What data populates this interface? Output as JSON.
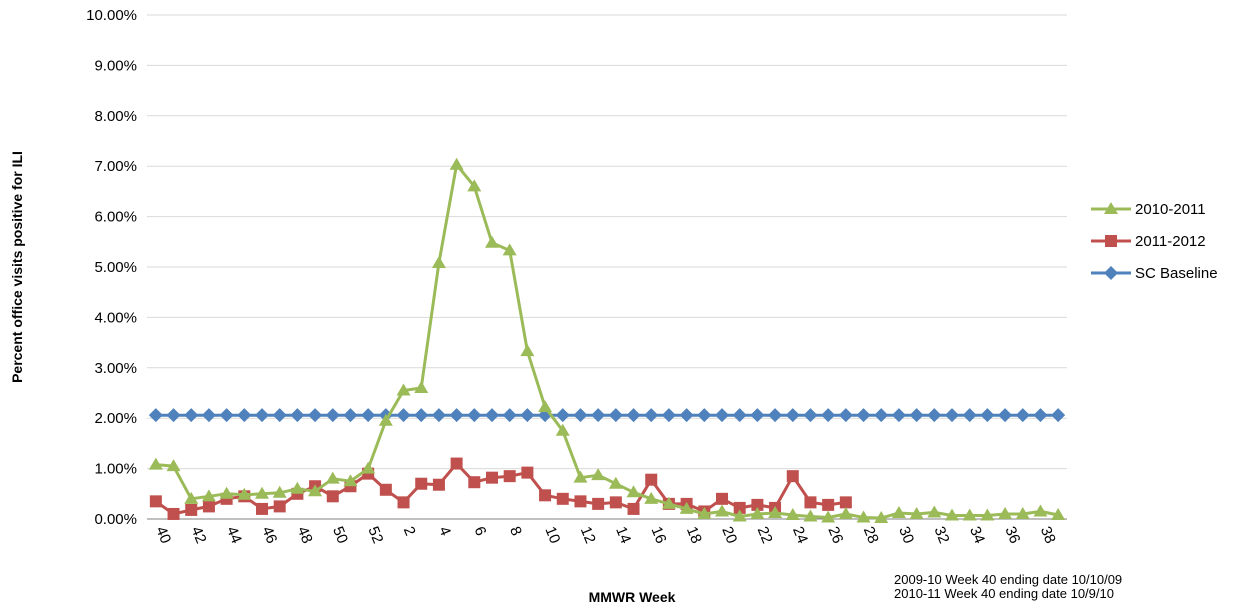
{
  "chart_data": {
    "type": "line",
    "xlabel": "MMWR Week",
    "ylabel": "Percent office visits positive for ILI",
    "ylim": [
      0,
      0.1
    ],
    "yticks": [
      "0.00%",
      "1.00%",
      "2.00%",
      "3.00%",
      "4.00%",
      "5.00%",
      "6.00%",
      "7.00%",
      "8.00%",
      "9.00%",
      "10.00%"
    ],
    "grid": "horizontal",
    "legend_position": "right",
    "categories": [
      "40",
      "41",
      "42",
      "43",
      "44",
      "45",
      "46",
      "47",
      "48",
      "49",
      "50",
      "51",
      "52",
      "1",
      "2",
      "3",
      "4",
      "5",
      "6",
      "7",
      "8",
      "9",
      "10",
      "11",
      "12",
      "13",
      "14",
      "15",
      "16",
      "17",
      "18",
      "19",
      "20",
      "21",
      "22",
      "23",
      "24",
      "25",
      "26",
      "27",
      "28",
      "29",
      "30",
      "31",
      "32",
      "33",
      "34",
      "35",
      "36",
      "37",
      "38",
      "39"
    ],
    "tick_labels": [
      "40",
      "42",
      "44",
      "46",
      "48",
      "50",
      "52",
      "2",
      "4",
      "6",
      "8",
      "10",
      "12",
      "14",
      "16",
      "18",
      "20",
      "22",
      "24",
      "26",
      "28",
      "30",
      "32",
      "34",
      "36",
      "38"
    ],
    "series": [
      {
        "name": "2010-2011",
        "color": "#9bbb59",
        "marker": "triangle",
        "values": [
          0.0108,
          0.0105,
          0.004,
          0.0045,
          0.005,
          0.0048,
          0.005,
          0.0052,
          0.006,
          0.0055,
          0.008,
          0.0075,
          0.01,
          0.0195,
          0.0255,
          0.026,
          0.0508,
          0.0703,
          0.066,
          0.0548,
          0.0533,
          0.0333,
          0.0222,
          0.0175,
          0.0082,
          0.0087,
          0.007,
          0.0053,
          0.004,
          0.003,
          0.002,
          0.001,
          0.0015,
          0.0005,
          0.001,
          0.0012,
          0.0008,
          0.0005,
          0.0003,
          0.001,
          0.0003,
          0.0002,
          0.0012,
          0.001,
          0.0013,
          0.0007,
          0.0007,
          0.0007,
          0.001,
          0.001,
          0.0015,
          0.0008
        ]
      },
      {
        "name": "2011-2012",
        "color": "#c0504d",
        "marker": "square",
        "values": [
          0.0035,
          0.001,
          0.0018,
          0.0025,
          0.004,
          0.0045,
          0.002,
          0.0025,
          0.005,
          0.0065,
          0.0045,
          0.0065,
          0.009,
          0.0058,
          0.0033,
          0.007,
          0.0068,
          0.011,
          0.0073,
          0.0082,
          0.0085,
          0.0092,
          0.0047,
          0.004,
          0.0035,
          0.003,
          0.0033,
          0.002,
          0.0078,
          0.003,
          0.003,
          0.0015,
          0.004,
          0.0022,
          0.0028,
          0.0022,
          0.0085,
          0.0033,
          0.0028,
          0.0033,
          null,
          null,
          null,
          null,
          null,
          null,
          null,
          null,
          null,
          null,
          null,
          null
        ]
      },
      {
        "name": "SC Baseline",
        "color": "#4f81bd",
        "marker": "diamond",
        "values": [
          0.0206,
          0.0206,
          0.0206,
          0.0206,
          0.0206,
          0.0206,
          0.0206,
          0.0206,
          0.0206,
          0.0206,
          0.0206,
          0.0206,
          0.0206,
          0.0206,
          0.0206,
          0.0206,
          0.0206,
          0.0206,
          0.0206,
          0.0206,
          0.0206,
          0.0206,
          0.0206,
          0.0206,
          0.0206,
          0.0206,
          0.0206,
          0.0206,
          0.0206,
          0.0206,
          0.0206,
          0.0206,
          0.0206,
          0.0206,
          0.0206,
          0.0206,
          0.0206,
          0.0206,
          0.0206,
          0.0206,
          0.0206,
          0.0206,
          0.0206,
          0.0206,
          0.0206,
          0.0206,
          0.0206,
          0.0206,
          0.0206,
          0.0206,
          0.0206,
          0.0206
        ]
      }
    ],
    "footnotes": [
      "2009-10 Week 40 ending date 10/10/09",
      "2010-11 Week 40 ending date 10/9/10"
    ]
  }
}
